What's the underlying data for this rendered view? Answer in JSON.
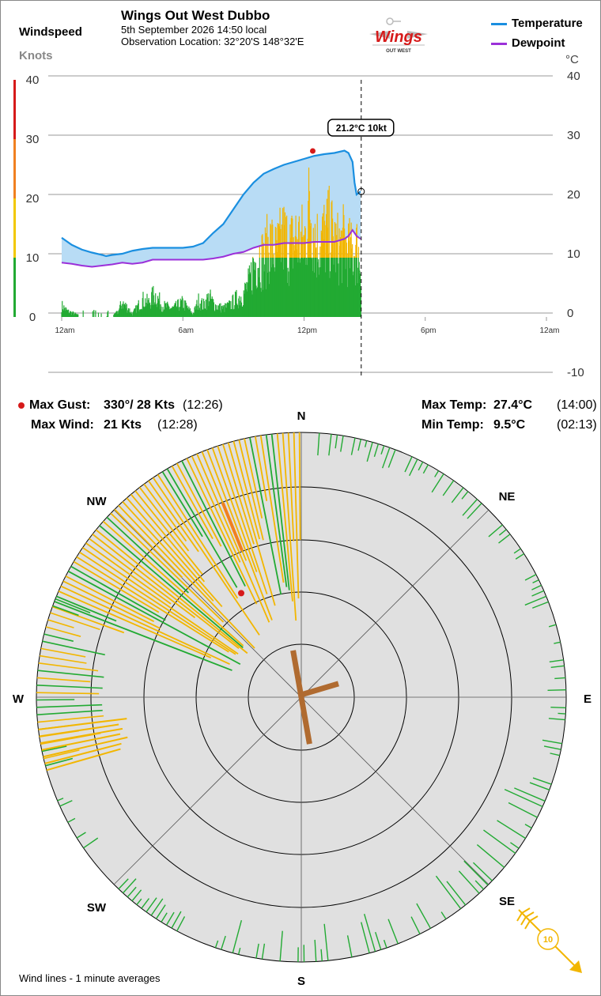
{
  "header": {
    "title": "Wings Out West Dubbo",
    "datetime": "5th September 2026  14:50 local",
    "location": "Observation Location: 32°20'S 148°32'E",
    "logo_text": "Wings",
    "logo_subtext": "OUT WEST"
  },
  "axes": {
    "left_title": "Windspeed",
    "left_unit": "Knots",
    "right_unit": "°C"
  },
  "legend": {
    "temperature": "Temperature",
    "dewpoint": "Dewpoint"
  },
  "colors": {
    "temperature": "#1a8fe0",
    "dewpoint": "#9b30d9",
    "temp_fill": "#b8dcf5",
    "wind_green": "#22aa33",
    "wind_yellow": "#f2b600",
    "gust": "#d61a1a",
    "band_green": "#22aa33",
    "band_yellow": "#f2c800",
    "band_orange": "#f08020",
    "band_red": "#d61a1a",
    "compass_bg": "#e0e0e0",
    "current_wind": "#b06b30",
    "gust_line": "#f08020"
  },
  "tooltip": "21.2°C  10kt",
  "stats": {
    "max_gust_label": "Max Gust:",
    "max_gust_value": "330°/  28 Kts",
    "max_gust_time": "(12:26)",
    "max_wind_label": "Max Wind:",
    "max_wind_value": "21 Kts",
    "max_wind_time": "(12:28)",
    "max_temp_label": "Max Temp:",
    "max_temp_value": "27.4°C",
    "max_temp_time": "(14:00)",
    "min_temp_label": "Min Temp:",
    "min_temp_value": "9.5°C",
    "min_temp_time": "(02:13)"
  },
  "compass": {
    "n": "N",
    "ne": "NE",
    "e": "E",
    "se": "SE",
    "s": "S",
    "sw": "SW",
    "w": "W",
    "nw": "NW",
    "scale_label": "10",
    "current_direction_deg": 350,
    "current_speed_kt": 10,
    "max_gust_direction_deg": 330,
    "max_gust_speed_kt": 28
  },
  "footer": "Wind lines - 1 minute averages",
  "chart_data": {
    "type": "line",
    "x_ticks": [
      "12am",
      "6am",
      "12pm",
      "6pm",
      "12am"
    ],
    "x_range_hours": [
      0,
      24
    ],
    "current_time_hours": 14.83,
    "y_left": {
      "label": "Windspeed",
      "unit": "Knots",
      "ticks": [
        0,
        10,
        20,
        30,
        40
      ],
      "range": [
        0,
        40
      ]
    },
    "y_right": {
      "label": "",
      "unit": "°C",
      "ticks": [
        -10,
        0,
        10,
        20,
        30,
        40
      ],
      "range": [
        -10,
        40
      ]
    },
    "series": [
      {
        "name": "Temperature",
        "x": [
          0,
          0.5,
          1,
          1.5,
          2,
          2.2,
          2.5,
          3,
          3.5,
          4,
          4.5,
          5,
          5.5,
          6,
          6.5,
          7,
          7.5,
          8,
          8.5,
          9,
          9.5,
          10,
          10.5,
          11,
          11.5,
          12,
          12.5,
          13,
          13.5,
          14,
          14.2,
          14.4,
          14.5,
          14.6,
          14.8
        ],
        "values": [
          12.7,
          11.5,
          10.7,
          10.2,
          9.8,
          9.6,
          9.8,
          10.0,
          10.5,
          10.8,
          11.0,
          11.0,
          11.0,
          11.0,
          11.2,
          11.8,
          13.5,
          15.0,
          17.5,
          20.0,
          22.0,
          23.5,
          24.3,
          25.0,
          25.5,
          26.0,
          26.5,
          26.8,
          27.0,
          27.4,
          27.0,
          25.5,
          22.0,
          20.0,
          20.5
        ]
      },
      {
        "name": "Dewpoint",
        "x": [
          0,
          0.5,
          1,
          1.5,
          2,
          2.5,
          3,
          3.5,
          4,
          4.5,
          5,
          5.5,
          6,
          6.5,
          7,
          7.5,
          8,
          8.5,
          9,
          9.5,
          10,
          10.5,
          11,
          11.5,
          12,
          12.5,
          13,
          13.5,
          14,
          14.2,
          14.4,
          14.6,
          14.8
        ],
        "values": [
          8.5,
          8.3,
          8.0,
          7.8,
          8.0,
          8.2,
          8.5,
          8.3,
          8.5,
          9.0,
          9.0,
          9.0,
          9.0,
          9.0,
          9.0,
          9.2,
          9.5,
          10.0,
          10.3,
          11.0,
          11.5,
          11.5,
          11.8,
          11.8,
          11.8,
          12.0,
          12.0,
          12.0,
          12.5,
          13.0,
          14.0,
          13.0,
          12.5
        ]
      },
      {
        "name": "Windspeed",
        "unit": "kt",
        "x": [
          0,
          0.3,
          0.7,
          1,
          1.5,
          2,
          2.5,
          2.8,
          3,
          3.3,
          3.5,
          3.8,
          4,
          4.3,
          4.6,
          5,
          5.5,
          6,
          6.5,
          6.8,
          7,
          7.3,
          7.6,
          8,
          8.3,
          8.6,
          9,
          9.3,
          9.5,
          9.8,
          10,
          10.3,
          10.6,
          11,
          11.3,
          11.6,
          12,
          12.3,
          12.6,
          13,
          13.3,
          13.6,
          14,
          14.3,
          14.6,
          14.8
        ],
        "values": [
          2,
          1,
          0.5,
          0,
          0,
          0,
          0,
          1,
          2.5,
          1.5,
          0.5,
          2,
          3,
          2.5,
          4,
          2,
          1.5,
          2.5,
          0.5,
          3,
          2,
          3.5,
          2,
          1.5,
          2,
          3,
          4,
          6,
          9,
          11,
          10,
          13,
          11,
          14,
          12,
          14,
          13,
          20,
          13,
          14,
          15,
          12,
          13,
          11,
          12,
          10
        ],
        "max_gust": {
          "x": 12.43,
          "value": 28
        }
      }
    ]
  }
}
